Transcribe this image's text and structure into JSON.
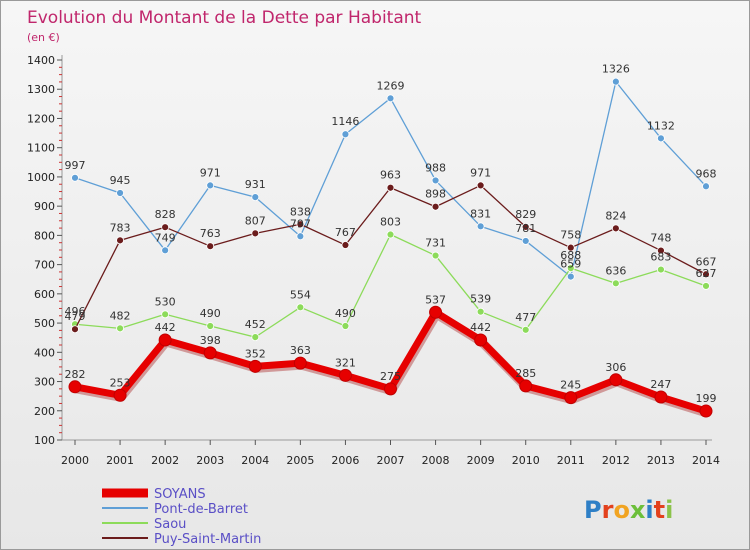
{
  "chart_data": {
    "type": "line",
    "title": "Evolution du Montant de la Dette par Habitant",
    "subtitle": "(en €)",
    "x": [
      "2000",
      "2001",
      "2002",
      "2003",
      "2004",
      "2005",
      "2006",
      "2007",
      "2008",
      "2009",
      "2010",
      "2011",
      "2012",
      "2013",
      "2014"
    ],
    "ylim": [
      100,
      1400
    ],
    "yticks": [
      100,
      200,
      300,
      400,
      500,
      600,
      700,
      800,
      900,
      1000,
      1100,
      1200,
      1300,
      1400
    ],
    "grid": false,
    "legend_position": "bottom-left",
    "series": [
      {
        "name": "SOYANS",
        "color": "#e60000",
        "values": [
          282,
          253,
          442,
          398,
          352,
          363,
          321,
          275,
          537,
          442,
          285,
          245,
          306,
          247,
          199
        ]
      },
      {
        "name": "Pont-de-Barret",
        "color": "#5f9fd6",
        "values": [
          997,
          945,
          749,
          971,
          931,
          797,
          1146,
          1269,
          988,
          831,
          781,
          659,
          1326,
          1132,
          968
        ]
      },
      {
        "name": "Saou",
        "color": "#8cdb5a",
        "values": [
          496,
          482,
          530,
          490,
          452,
          554,
          490,
          803,
          731,
          539,
          477,
          688,
          636,
          683,
          627
        ]
      },
      {
        "name": "Puy-Saint-Martin",
        "color": "#6b1c1c",
        "values": [
          479,
          783,
          828,
          763,
          807,
          838,
          767,
          963,
          898,
          971,
          829,
          758,
          824,
          748,
          667
        ]
      }
    ]
  },
  "logo": {
    "text": "Proxiti"
  }
}
